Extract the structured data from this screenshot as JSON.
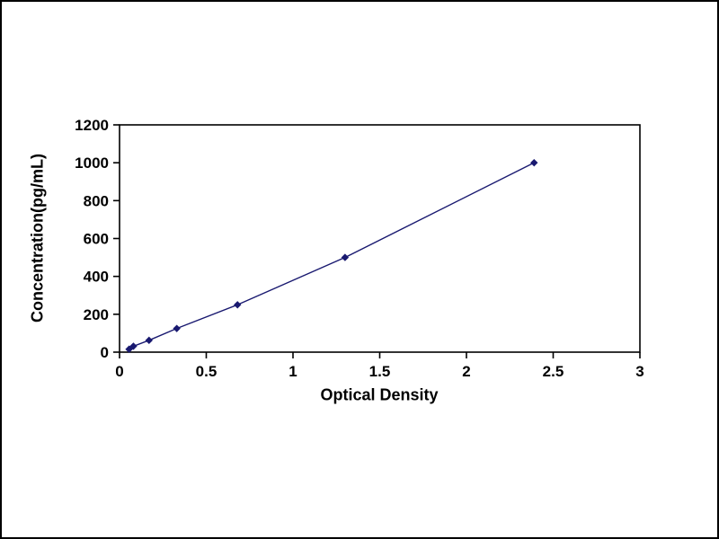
{
  "page": {
    "background": "#ffffff",
    "border_color": "#000000"
  },
  "chart_data": {
    "type": "line",
    "title": "",
    "xlabel": "Optical Density",
    "ylabel": "Concentration(pg/mL)",
    "x": [
      0.055,
      0.08,
      0.17,
      0.33,
      0.68,
      1.3,
      2.39
    ],
    "y": [
      15.6,
      31.2,
      62.5,
      125,
      250,
      500,
      1000
    ],
    "xlim": [
      0,
      3
    ],
    "ylim": [
      0,
      1200
    ],
    "xticks": [
      0,
      0.5,
      1,
      1.5,
      2,
      2.5,
      3
    ],
    "xtick_labels": [
      "0",
      "0.5",
      "1",
      "1.5",
      "2",
      "2.5",
      "3"
    ],
    "yticks": [
      0,
      200,
      400,
      600,
      800,
      1000,
      1200
    ],
    "ytick_labels": [
      "0",
      "200",
      "400",
      "600",
      "800",
      "1000",
      "1200"
    ],
    "line_color": "#191970",
    "marker": "diamond",
    "marker_color": "#191970",
    "axis_color": "#000000",
    "grid": false,
    "legend": false
  }
}
